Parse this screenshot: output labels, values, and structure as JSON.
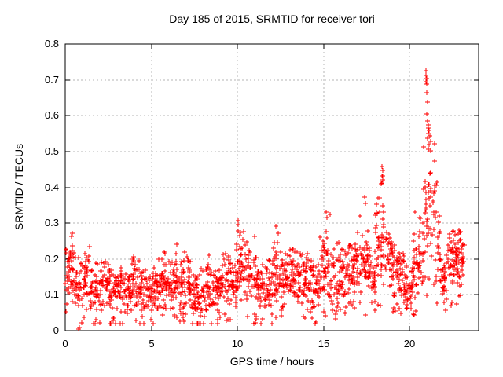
{
  "chart": {
    "title": "Day 185 of 2015, SRMTID for receiver tori",
    "xlabel": "GPS time / hours",
    "ylabel": "SRMTID / TECUs"
  },
  "chart_data": {
    "type": "scatter",
    "title": "Day 185 of 2015, SRMTID for receiver tori",
    "xlabel": "GPS time / hours",
    "ylabel": "SRMTID / TECUs",
    "marker": "plus",
    "marker_color": "#ff0000",
    "frame_color": "#000000",
    "grid": true,
    "grid_color": "#b4b4b4",
    "legend": "none",
    "xlim": [
      0,
      24
    ],
    "ylim": [
      0,
      0.8
    ],
    "x_ticks": [
      0,
      5,
      10,
      15,
      20
    ],
    "x_tick_labels": [
      "0",
      "5",
      "10",
      "15",
      "20"
    ],
    "y_ticks": [
      0,
      0.1,
      0.2,
      0.3,
      0.4,
      0.5,
      0.6,
      0.7,
      0.8
    ],
    "y_tick_labels": [
      "0",
      "0.1",
      "0.2",
      "0.3",
      "0.4",
      "0.5",
      "0.6",
      "0.7",
      "0.8"
    ],
    "seed": 20150185,
    "band_segments": [
      [
        0.0,
        0.3,
        24,
        0.17,
        0.045,
        0.25
      ],
      [
        0.3,
        0.6,
        24,
        0.155,
        0.05,
        0.275
      ],
      [
        0.6,
        1.0,
        30,
        0.13,
        0.04,
        0.2
      ],
      [
        1.0,
        1.4,
        32,
        0.14,
        0.05,
        0.245
      ],
      [
        1.4,
        2.0,
        46,
        0.115,
        0.04,
        0.19
      ],
      [
        2.0,
        2.6,
        46,
        0.12,
        0.04,
        0.21
      ],
      [
        2.6,
        3.2,
        46,
        0.105,
        0.035,
        0.17
      ],
      [
        3.2,
        3.8,
        46,
        0.11,
        0.04,
        0.19
      ],
      [
        3.8,
        4.4,
        46,
        0.12,
        0.04,
        0.21
      ],
      [
        4.4,
        5.0,
        46,
        0.11,
        0.035,
        0.18
      ],
      [
        5.0,
        5.5,
        40,
        0.12,
        0.04,
        0.2
      ],
      [
        5.5,
        6.0,
        40,
        0.13,
        0.04,
        0.225
      ],
      [
        6.0,
        6.4,
        32,
        0.125,
        0.04,
        0.2
      ],
      [
        6.4,
        6.8,
        32,
        0.14,
        0.045,
        0.245
      ],
      [
        6.8,
        7.3,
        40,
        0.13,
        0.04,
        0.22
      ],
      [
        7.3,
        7.8,
        40,
        0.1,
        0.035,
        0.16
      ],
      [
        7.8,
        8.4,
        46,
        0.12,
        0.045,
        0.22
      ],
      [
        8.4,
        9.0,
        46,
        0.1,
        0.04,
        0.18
      ],
      [
        9.0,
        9.5,
        40,
        0.13,
        0.04,
        0.22
      ],
      [
        9.5,
        9.9,
        32,
        0.12,
        0.035,
        0.19
      ],
      [
        9.9,
        10.2,
        26,
        0.17,
        0.05,
        0.3
      ],
      [
        10.2,
        10.7,
        40,
        0.16,
        0.05,
        0.28
      ],
      [
        10.7,
        11.3,
        46,
        0.14,
        0.05,
        0.27
      ],
      [
        11.3,
        12.0,
        54,
        0.12,
        0.045,
        0.2
      ],
      [
        12.0,
        12.5,
        40,
        0.15,
        0.05,
        0.285
      ],
      [
        12.5,
        13.0,
        40,
        0.15,
        0.04,
        0.22
      ],
      [
        13.0,
        13.6,
        46,
        0.15,
        0.045,
        0.23
      ],
      [
        13.6,
        14.2,
        46,
        0.14,
        0.045,
        0.22
      ],
      [
        14.2,
        14.7,
        40,
        0.12,
        0.04,
        0.2
      ],
      [
        14.7,
        15.0,
        24,
        0.14,
        0.05,
        0.28
      ],
      [
        15.0,
        15.4,
        32,
        0.17,
        0.055,
        0.33
      ],
      [
        15.4,
        16.0,
        46,
        0.14,
        0.05,
        0.25
      ],
      [
        16.0,
        16.5,
        40,
        0.15,
        0.05,
        0.26
      ],
      [
        16.5,
        17.1,
        46,
        0.16,
        0.05,
        0.28
      ],
      [
        17.1,
        17.6,
        40,
        0.18,
        0.055,
        0.36
      ],
      [
        17.6,
        18.0,
        32,
        0.15,
        0.05,
        0.25
      ],
      [
        18.0,
        18.3,
        24,
        0.22,
        0.065,
        0.4
      ],
      [
        18.3,
        18.6,
        24,
        0.25,
        0.075,
        0.455
      ],
      [
        18.6,
        19.1,
        40,
        0.19,
        0.055,
        0.3
      ],
      [
        19.1,
        19.6,
        40,
        0.16,
        0.05,
        0.26
      ],
      [
        19.6,
        20.1,
        40,
        0.13,
        0.045,
        0.22
      ],
      [
        20.1,
        20.5,
        32,
        0.17,
        0.05,
        0.3
      ],
      [
        20.5,
        20.8,
        24,
        0.21,
        0.06,
        0.34
      ],
      [
        20.8,
        21.1,
        22,
        0.31,
        0.1,
        0.58
      ],
      [
        21.1,
        21.5,
        26,
        0.33,
        0.09,
        0.56
      ],
      [
        21.5,
        21.8,
        22,
        0.22,
        0.07,
        0.42
      ],
      [
        21.8,
        22.2,
        30,
        0.14,
        0.04,
        0.23
      ],
      [
        22.2,
        22.6,
        36,
        0.19,
        0.05,
        0.265
      ],
      [
        22.6,
        23.0,
        36,
        0.2,
        0.05,
        0.275
      ],
      [
        23.0,
        23.2,
        16,
        0.18,
        0.04,
        0.24
      ]
    ],
    "notable_points": [
      [
        0.78,
        0.005
      ],
      [
        0.82,
        0.008
      ],
      [
        20.95,
        0.725
      ],
      [
        20.96,
        0.712
      ],
      [
        20.97,
        0.703
      ],
      [
        20.95,
        0.694
      ],
      [
        20.98,
        0.688
      ],
      [
        21.0,
        0.664
      ],
      [
        21.02,
        0.637
      ],
      [
        21.0,
        0.606
      ],
      [
        21.05,
        0.586
      ],
      [
        21.1,
        0.574
      ],
      [
        21.07,
        0.565
      ],
      [
        21.14,
        0.558
      ],
      [
        21.1,
        0.551
      ],
      [
        21.17,
        0.544
      ],
      [
        21.05,
        0.536
      ],
      [
        21.2,
        0.528
      ],
      [
        21.12,
        0.519
      ],
      [
        21.08,
        0.507
      ],
      [
        21.22,
        0.501
      ],
      [
        18.38,
        0.458
      ],
      [
        18.42,
        0.447
      ],
      [
        18.4,
        0.432
      ],
      [
        18.45,
        0.42
      ],
      [
        18.34,
        0.409
      ],
      [
        17.38,
        0.372
      ],
      [
        17.43,
        0.356
      ],
      [
        15.16,
        0.332
      ],
      [
        15.21,
        0.316
      ],
      [
        10.03,
        0.306
      ],
      [
        10.06,
        0.296
      ],
      [
        12.23,
        0.292
      ],
      [
        0.4,
        0.272
      ],
      [
        0.37,
        0.262
      ],
      [
        20.32,
        0.332
      ],
      [
        22.52,
        0.278
      ],
      [
        22.64,
        0.267
      ]
    ]
  }
}
